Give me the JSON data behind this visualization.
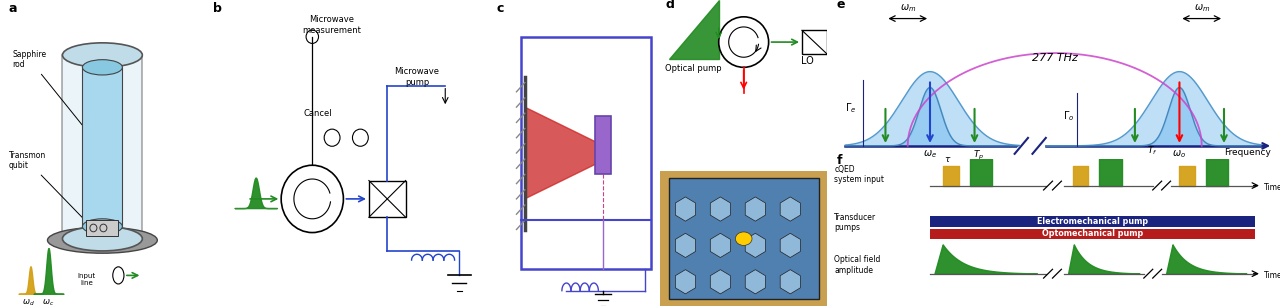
{
  "panel_labels": [
    "a",
    "b",
    "c",
    "d",
    "e",
    "f"
  ],
  "bg_a": "#dcdcdc",
  "bg_b": "#e0ede0",
  "bg_cd": "#f0e8e8",
  "bg_ef": "#ffffff",
  "colors": {
    "green": "#228B22",
    "orange": "#d4a017",
    "blue_peak": "#90c8f0",
    "blue_line": "#5599cc",
    "purple": "#cc44cc",
    "navy": "#1a237e",
    "red_bar": "#b71c1c",
    "axis_blue": "#1a237e"
  }
}
